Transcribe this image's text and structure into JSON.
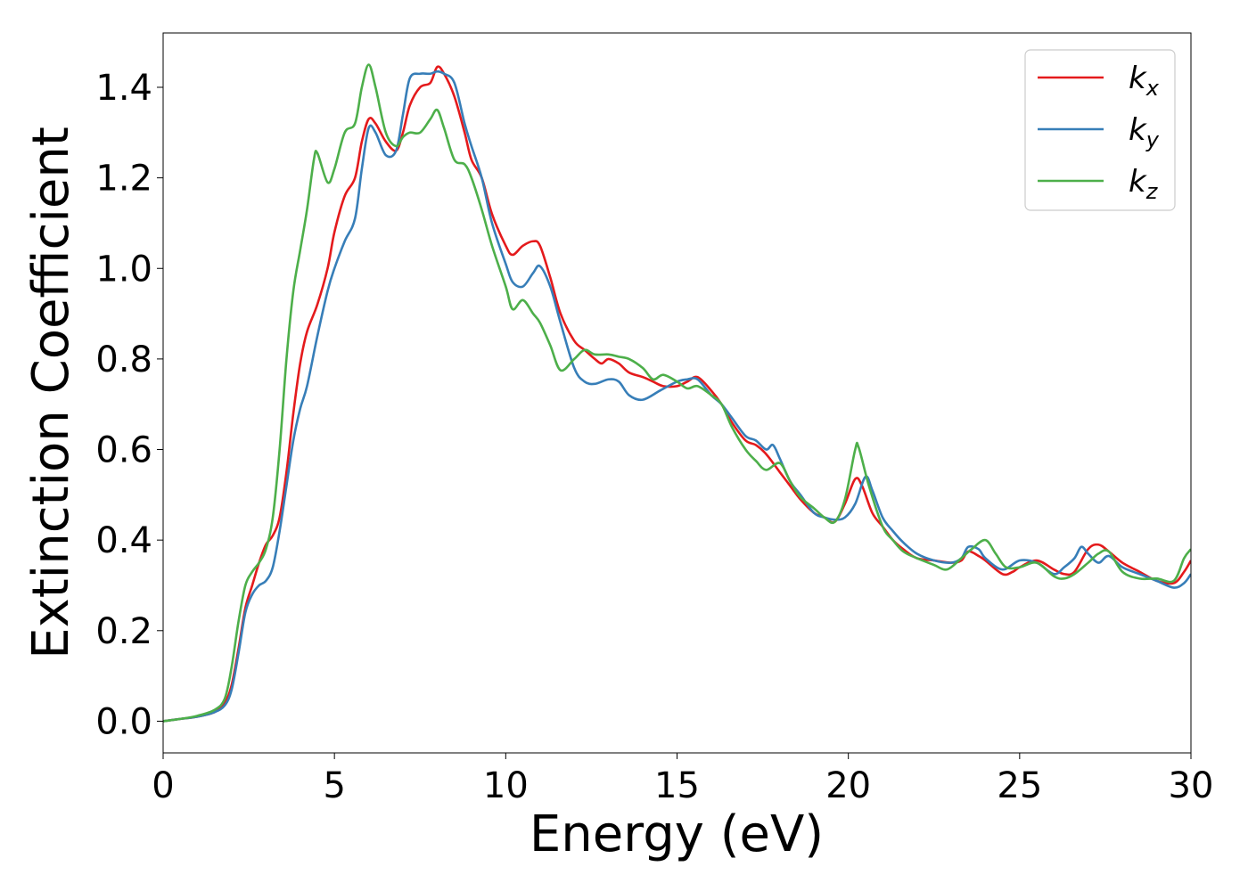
{
  "chart_data": {
    "type": "line",
    "xlabel": "Energy (eV)",
    "ylabel": "Extinction Coefficient",
    "xlim": [
      0,
      30
    ],
    "ylim": [
      -0.07,
      1.52
    ],
    "xticks": [
      0,
      5,
      10,
      15,
      20,
      25,
      30
    ],
    "xtick_labels": [
      "0",
      "5",
      "10",
      "15",
      "20",
      "25",
      "30"
    ],
    "yticks": [
      0.0,
      0.2,
      0.4,
      0.6,
      0.8,
      1.0,
      1.2,
      1.4
    ],
    "ytick_labels": [
      "0.0",
      "0.2",
      "0.4",
      "0.6",
      "0.8",
      "1.0",
      "1.2",
      "1.4"
    ],
    "grid": false,
    "legend_position": "top-right",
    "series": [
      {
        "name": "k_x",
        "legend_base": "k",
        "legend_sub": "x",
        "color": "#e41a1c",
        "points": [
          [
            0,
            0.0
          ],
          [
            0.5,
            0.005
          ],
          [
            1.0,
            0.01
          ],
          [
            1.5,
            0.02
          ],
          [
            1.8,
            0.04
          ],
          [
            2.0,
            0.08
          ],
          [
            2.2,
            0.16
          ],
          [
            2.4,
            0.25
          ],
          [
            2.6,
            0.3
          ],
          [
            2.8,
            0.35
          ],
          [
            3.0,
            0.39
          ],
          [
            3.2,
            0.41
          ],
          [
            3.4,
            0.45
          ],
          [
            3.6,
            0.55
          ],
          [
            3.8,
            0.68
          ],
          [
            4.0,
            0.79
          ],
          [
            4.2,
            0.86
          ],
          [
            4.5,
            0.92
          ],
          [
            4.8,
            1.0
          ],
          [
            5.0,
            1.08
          ],
          [
            5.3,
            1.16
          ],
          [
            5.6,
            1.2
          ],
          [
            5.8,
            1.28
          ],
          [
            6.0,
            1.33
          ],
          [
            6.2,
            1.32
          ],
          [
            6.5,
            1.28
          ],
          [
            6.8,
            1.26
          ],
          [
            7.0,
            1.3
          ],
          [
            7.2,
            1.36
          ],
          [
            7.5,
            1.4
          ],
          [
            7.8,
            1.41
          ],
          [
            8.0,
            1.445
          ],
          [
            8.2,
            1.43
          ],
          [
            8.5,
            1.38
          ],
          [
            8.8,
            1.3
          ],
          [
            9.0,
            1.24
          ],
          [
            9.3,
            1.2
          ],
          [
            9.6,
            1.12
          ],
          [
            10.0,
            1.05
          ],
          [
            10.2,
            1.03
          ],
          [
            10.5,
            1.05
          ],
          [
            10.8,
            1.06
          ],
          [
            11.0,
            1.05
          ],
          [
            11.3,
            0.98
          ],
          [
            11.6,
            0.9
          ],
          [
            12.0,
            0.84
          ],
          [
            12.3,
            0.82
          ],
          [
            12.6,
            0.8
          ],
          [
            12.8,
            0.79
          ],
          [
            13.0,
            0.8
          ],
          [
            13.3,
            0.79
          ],
          [
            13.6,
            0.77
          ],
          [
            14.0,
            0.76
          ],
          [
            14.3,
            0.75
          ],
          [
            14.6,
            0.74
          ],
          [
            15.0,
            0.74
          ],
          [
            15.3,
            0.75
          ],
          [
            15.6,
            0.76
          ],
          [
            16.0,
            0.73
          ],
          [
            16.3,
            0.7
          ],
          [
            16.6,
            0.66
          ],
          [
            17.0,
            0.62
          ],
          [
            17.3,
            0.61
          ],
          [
            17.6,
            0.59
          ],
          [
            18.0,
            0.55
          ],
          [
            18.3,
            0.52
          ],
          [
            18.6,
            0.49
          ],
          [
            19.0,
            0.46
          ],
          [
            19.3,
            0.45
          ],
          [
            19.6,
            0.44
          ],
          [
            19.9,
            0.48
          ],
          [
            20.2,
            0.535
          ],
          [
            20.4,
            0.52
          ],
          [
            20.7,
            0.46
          ],
          [
            21.0,
            0.43
          ],
          [
            21.3,
            0.4
          ],
          [
            21.6,
            0.38
          ],
          [
            22.0,
            0.36
          ],
          [
            22.5,
            0.355
          ],
          [
            23.0,
            0.35
          ],
          [
            23.3,
            0.355
          ],
          [
            23.5,
            0.375
          ],
          [
            23.8,
            0.365
          ],
          [
            24.0,
            0.355
          ],
          [
            24.5,
            0.325
          ],
          [
            24.8,
            0.33
          ],
          [
            25.0,
            0.34
          ],
          [
            25.5,
            0.355
          ],
          [
            26.0,
            0.335
          ],
          [
            26.3,
            0.325
          ],
          [
            26.6,
            0.33
          ],
          [
            27.0,
            0.38
          ],
          [
            27.3,
            0.39
          ],
          [
            27.6,
            0.375
          ],
          [
            28.0,
            0.35
          ],
          [
            28.5,
            0.33
          ],
          [
            29.0,
            0.31
          ],
          [
            29.5,
            0.305
          ],
          [
            29.8,
            0.33
          ],
          [
            30.0,
            0.355
          ]
        ]
      },
      {
        "name": "k_y",
        "legend_base": "k",
        "legend_sub": "y",
        "color": "#377eb8",
        "points": [
          [
            0,
            0.0
          ],
          [
            0.5,
            0.005
          ],
          [
            1.0,
            0.01
          ],
          [
            1.5,
            0.02
          ],
          [
            1.8,
            0.035
          ],
          [
            2.0,
            0.07
          ],
          [
            2.2,
            0.15
          ],
          [
            2.4,
            0.24
          ],
          [
            2.6,
            0.28
          ],
          [
            2.8,
            0.3
          ],
          [
            3.0,
            0.31
          ],
          [
            3.2,
            0.34
          ],
          [
            3.4,
            0.42
          ],
          [
            3.6,
            0.52
          ],
          [
            3.8,
            0.62
          ],
          [
            4.0,
            0.69
          ],
          [
            4.2,
            0.74
          ],
          [
            4.5,
            0.85
          ],
          [
            4.8,
            0.95
          ],
          [
            5.0,
            1.0
          ],
          [
            5.3,
            1.06
          ],
          [
            5.6,
            1.11
          ],
          [
            5.8,
            1.22
          ],
          [
            6.0,
            1.31
          ],
          [
            6.2,
            1.3
          ],
          [
            6.5,
            1.25
          ],
          [
            6.8,
            1.26
          ],
          [
            7.0,
            1.34
          ],
          [
            7.2,
            1.42
          ],
          [
            7.5,
            1.43
          ],
          [
            7.8,
            1.43
          ],
          [
            8.0,
            1.435
          ],
          [
            8.2,
            1.43
          ],
          [
            8.5,
            1.41
          ],
          [
            8.8,
            1.32
          ],
          [
            9.0,
            1.27
          ],
          [
            9.3,
            1.2
          ],
          [
            9.6,
            1.1
          ],
          [
            10.0,
            1.01
          ],
          [
            10.2,
            0.97
          ],
          [
            10.5,
            0.96
          ],
          [
            10.8,
            0.99
          ],
          [
            11.0,
            1.005
          ],
          [
            11.3,
            0.96
          ],
          [
            11.6,
            0.88
          ],
          [
            12.0,
            0.78
          ],
          [
            12.3,
            0.75
          ],
          [
            12.6,
            0.745
          ],
          [
            13.0,
            0.755
          ],
          [
            13.3,
            0.75
          ],
          [
            13.6,
            0.72
          ],
          [
            14.0,
            0.71
          ],
          [
            14.5,
            0.73
          ],
          [
            15.0,
            0.75
          ],
          [
            15.3,
            0.755
          ],
          [
            15.6,
            0.755
          ],
          [
            16.0,
            0.72
          ],
          [
            16.3,
            0.7
          ],
          [
            16.6,
            0.67
          ],
          [
            17.0,
            0.63
          ],
          [
            17.3,
            0.62
          ],
          [
            17.6,
            0.6
          ],
          [
            17.8,
            0.61
          ],
          [
            18.0,
            0.58
          ],
          [
            18.3,
            0.53
          ],
          [
            18.6,
            0.5
          ],
          [
            19.0,
            0.46
          ],
          [
            19.3,
            0.45
          ],
          [
            19.6,
            0.445
          ],
          [
            19.9,
            0.45
          ],
          [
            20.2,
            0.48
          ],
          [
            20.5,
            0.54
          ],
          [
            20.7,
            0.51
          ],
          [
            21.0,
            0.45
          ],
          [
            21.3,
            0.42
          ],
          [
            21.6,
            0.395
          ],
          [
            22.0,
            0.37
          ],
          [
            22.5,
            0.355
          ],
          [
            23.0,
            0.35
          ],
          [
            23.3,
            0.36
          ],
          [
            23.5,
            0.385
          ],
          [
            23.8,
            0.38
          ],
          [
            24.0,
            0.36
          ],
          [
            24.5,
            0.335
          ],
          [
            25.0,
            0.355
          ],
          [
            25.5,
            0.35
          ],
          [
            26.0,
            0.325
          ],
          [
            26.3,
            0.34
          ],
          [
            26.6,
            0.36
          ],
          [
            26.8,
            0.385
          ],
          [
            27.0,
            0.37
          ],
          [
            27.3,
            0.35
          ],
          [
            27.6,
            0.365
          ],
          [
            28.0,
            0.34
          ],
          [
            28.5,
            0.325
          ],
          [
            29.0,
            0.31
          ],
          [
            29.5,
            0.295
          ],
          [
            29.8,
            0.305
          ],
          [
            30.0,
            0.325
          ]
        ]
      },
      {
        "name": "k_z",
        "legend_base": "k",
        "legend_sub": "z",
        "color": "#4daf4a",
        "points": [
          [
            0,
            0.0
          ],
          [
            0.5,
            0.005
          ],
          [
            1.0,
            0.012
          ],
          [
            1.5,
            0.025
          ],
          [
            1.8,
            0.05
          ],
          [
            2.0,
            0.12
          ],
          [
            2.2,
            0.22
          ],
          [
            2.4,
            0.3
          ],
          [
            2.6,
            0.33
          ],
          [
            2.8,
            0.35
          ],
          [
            3.0,
            0.38
          ],
          [
            3.2,
            0.45
          ],
          [
            3.4,
            0.6
          ],
          [
            3.6,
            0.8
          ],
          [
            3.8,
            0.95
          ],
          [
            4.0,
            1.04
          ],
          [
            4.2,
            1.13
          ],
          [
            4.4,
            1.24
          ],
          [
            4.5,
            1.255
          ],
          [
            4.8,
            1.19
          ],
          [
            5.0,
            1.22
          ],
          [
            5.3,
            1.3
          ],
          [
            5.6,
            1.32
          ],
          [
            5.8,
            1.4
          ],
          [
            6.0,
            1.45
          ],
          [
            6.2,
            1.4
          ],
          [
            6.5,
            1.3
          ],
          [
            6.8,
            1.27
          ],
          [
            7.0,
            1.29
          ],
          [
            7.2,
            1.3
          ],
          [
            7.5,
            1.3
          ],
          [
            7.8,
            1.33
          ],
          [
            8.0,
            1.35
          ],
          [
            8.2,
            1.31
          ],
          [
            8.5,
            1.24
          ],
          [
            8.8,
            1.23
          ],
          [
            9.0,
            1.2
          ],
          [
            9.3,
            1.13
          ],
          [
            9.6,
            1.05
          ],
          [
            10.0,
            0.96
          ],
          [
            10.2,
            0.91
          ],
          [
            10.5,
            0.93
          ],
          [
            10.8,
            0.9
          ],
          [
            11.0,
            0.88
          ],
          [
            11.3,
            0.83
          ],
          [
            11.6,
            0.775
          ],
          [
            12.0,
            0.8
          ],
          [
            12.3,
            0.82
          ],
          [
            12.6,
            0.81
          ],
          [
            13.0,
            0.81
          ],
          [
            13.3,
            0.805
          ],
          [
            13.6,
            0.8
          ],
          [
            14.0,
            0.78
          ],
          [
            14.3,
            0.755
          ],
          [
            14.6,
            0.765
          ],
          [
            15.0,
            0.75
          ],
          [
            15.3,
            0.735
          ],
          [
            15.6,
            0.74
          ],
          [
            16.0,
            0.72
          ],
          [
            16.3,
            0.7
          ],
          [
            16.6,
            0.65
          ],
          [
            17.0,
            0.6
          ],
          [
            17.3,
            0.575
          ],
          [
            17.6,
            0.555
          ],
          [
            18.0,
            0.57
          ],
          [
            18.3,
            0.53
          ],
          [
            18.6,
            0.495
          ],
          [
            19.0,
            0.47
          ],
          [
            19.3,
            0.45
          ],
          [
            19.6,
            0.44
          ],
          [
            19.9,
            0.49
          ],
          [
            20.2,
            0.6
          ],
          [
            20.3,
            0.605
          ],
          [
            20.6,
            0.52
          ],
          [
            21.0,
            0.43
          ],
          [
            21.3,
            0.4
          ],
          [
            21.6,
            0.375
          ],
          [
            22.0,
            0.36
          ],
          [
            22.5,
            0.345
          ],
          [
            22.8,
            0.335
          ],
          [
            23.0,
            0.34
          ],
          [
            23.3,
            0.36
          ],
          [
            23.6,
            0.38
          ],
          [
            24.0,
            0.4
          ],
          [
            24.3,
            0.37
          ],
          [
            24.6,
            0.34
          ],
          [
            25.0,
            0.34
          ],
          [
            25.5,
            0.35
          ],
          [
            26.0,
            0.32
          ],
          [
            26.3,
            0.315
          ],
          [
            26.6,
            0.325
          ],
          [
            27.0,
            0.35
          ],
          [
            27.3,
            0.37
          ],
          [
            27.6,
            0.375
          ],
          [
            28.0,
            0.33
          ],
          [
            28.5,
            0.315
          ],
          [
            29.0,
            0.315
          ],
          [
            29.5,
            0.31
          ],
          [
            29.8,
            0.36
          ],
          [
            30.0,
            0.38
          ]
        ]
      }
    ]
  }
}
